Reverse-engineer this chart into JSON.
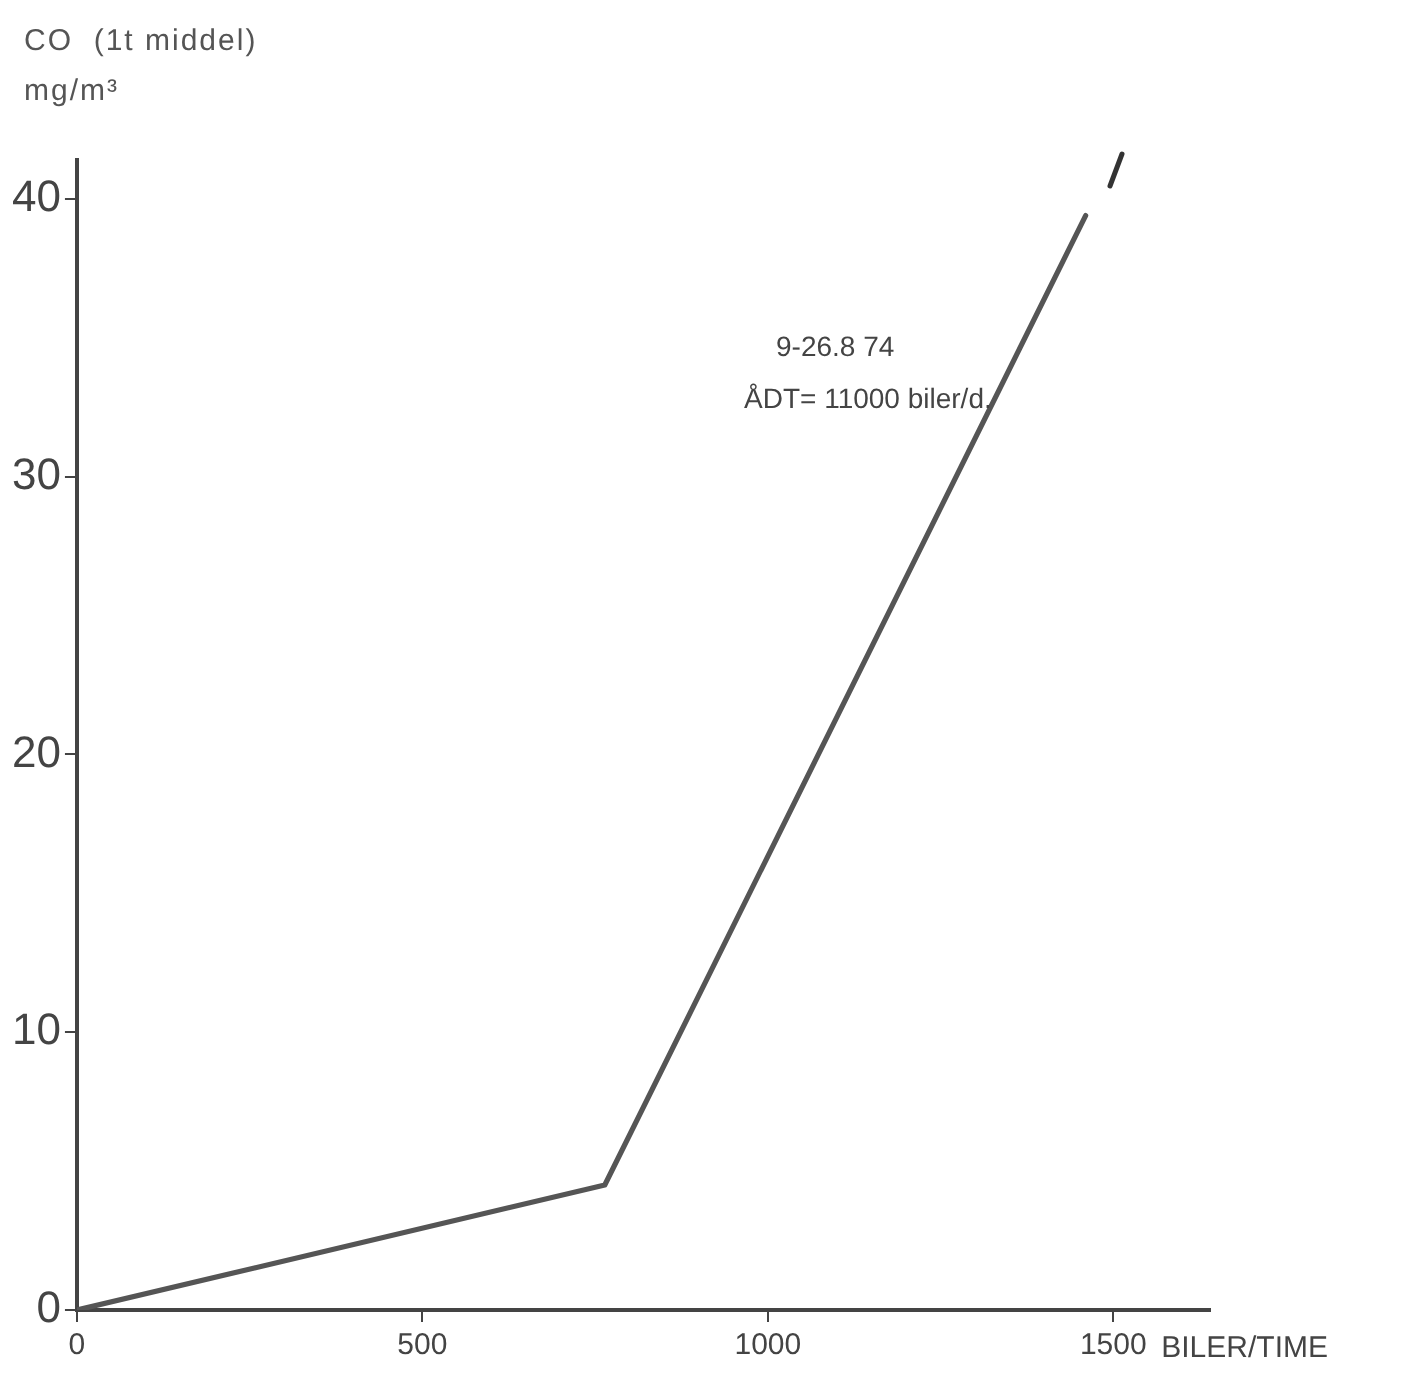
{
  "chart_data": {
    "type": "line",
    "ylabel": "CO  (1t middel)\nmg/m³",
    "xlabel": "BILER/TIME",
    "annotations": [
      "9-26.8 74",
      "ÅDT= 11000 biler/d."
    ],
    "x": [
      0,
      764,
      1460
    ],
    "series": [
      {
        "color": "#555555",
        "values": [
          0,
          4.5,
          39.4
        ]
      }
    ],
    "xlim": [
      0,
      1640
    ],
    "xticks": [
      0,
      500,
      1000,
      1500
    ],
    "ylim": [
      0,
      41.4
    ],
    "yticks": [
      0,
      10,
      20,
      30,
      40
    ],
    "grid": false,
    "legend": false,
    "marker": "none",
    "line_style": "solid"
  }
}
